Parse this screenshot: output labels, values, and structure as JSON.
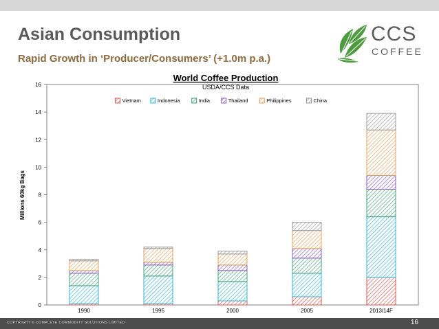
{
  "slide": {
    "title": "Asian Consumption",
    "subtitle": "Rapid Growth in ‘Producer/Consumers’ (+1.0m p.a.)",
    "logo_line1": "CCS",
    "logo_line2": "COFFEE",
    "footer_copyright": "COPYRIGHT © COMPLETE COMMODITY SOLUTIONS LIMITED",
    "page_number": "16"
  },
  "colors": {
    "title": "#5a5a5a",
    "subtitle": "#8c6b3f",
    "logo_green": "#4e9a3f",
    "footer": "#4d4d4d",
    "topbar": "#d7d7d7"
  },
  "chart_data": {
    "type": "bar",
    "stacked": true,
    "title": "World Coffee Production",
    "subtitle": "USDA/CCS Data",
    "xlabel": "",
    "ylabel": "Millions  60kg Bags",
    "ylim": [
      0,
      16
    ],
    "yticks": [
      0,
      2,
      4,
      6,
      8,
      10,
      12,
      14,
      16
    ],
    "grid": false,
    "legend_position": "top-center",
    "categories": [
      "1990",
      "1995",
      "2000",
      "2005",
      "2013/14F"
    ],
    "series": [
      {
        "name": "Vietnam",
        "color": "#d9534f",
        "values": [
          0.1,
          0.1,
          0.3,
          0.6,
          2.0
        ]
      },
      {
        "name": "Indonesia",
        "color": "#33b5d6",
        "values": [
          1.3,
          2.0,
          1.4,
          1.7,
          4.4
        ]
      },
      {
        "name": "India",
        "color": "#3fa37a",
        "values": [
          0.9,
          0.8,
          0.8,
          1.1,
          2.0
        ]
      },
      {
        "name": "Thailand",
        "color": "#8a5cc0",
        "values": [
          0.2,
          0.2,
          0.4,
          0.7,
          1.0
        ]
      },
      {
        "name": "Philippines",
        "color": "#e3a25c",
        "values": [
          0.7,
          1.0,
          0.8,
          1.3,
          3.3
        ]
      },
      {
        "name": "China",
        "color": "#9a9a9a",
        "values": [
          0.1,
          0.1,
          0.2,
          0.6,
          1.2
        ]
      }
    ]
  }
}
